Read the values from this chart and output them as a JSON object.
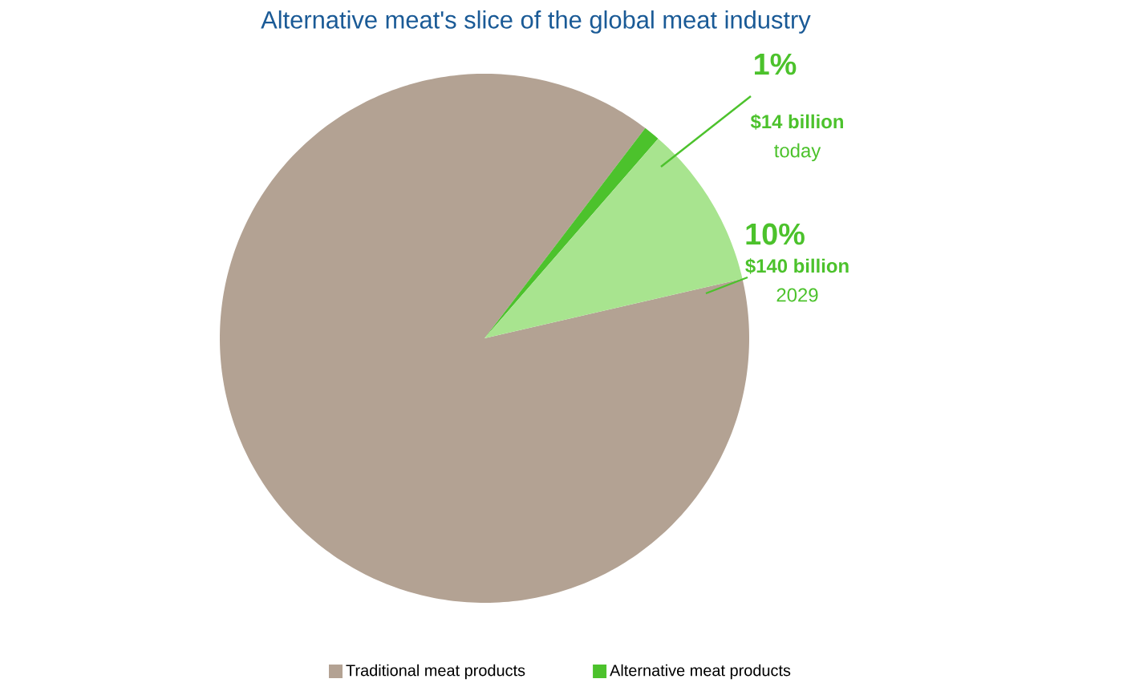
{
  "chart_data": {
    "type": "pie",
    "title": "Alternative meat's slice of the global meat industry",
    "categories": [
      "Traditional meat products",
      "Alternative meat products",
      null
    ],
    "values": [
      89,
      1,
      10
    ],
    "colors": [
      "#b3a293",
      "#4cc22c",
      "#a8e48f"
    ],
    "value_labels": [
      null,
      "1%",
      "10%"
    ],
    "annotations": [
      "$14 billion",
      "today",
      "$140 billion",
      "2029"
    ],
    "legend": "bottom"
  }
}
